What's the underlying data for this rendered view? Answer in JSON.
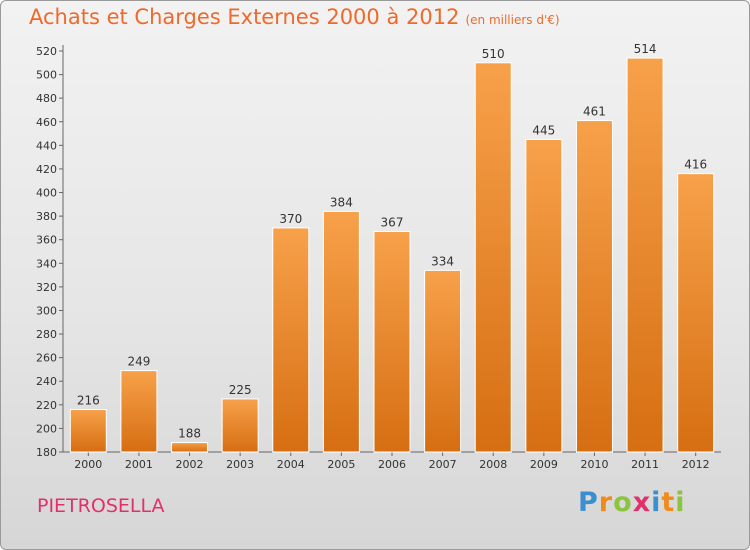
{
  "title": "Achats et Charges Externes 2000 à 2012",
  "unit": "(en milliers d'€)",
  "commune": "PIETROSELLA",
  "logo": {
    "letters": [
      "P",
      "r",
      "o",
      "x",
      "i",
      "t",
      "i"
    ],
    "colors": [
      "#3a8fd0",
      "#f08a1c",
      "#8cc43c",
      "#e2306c",
      "#3a8fd0",
      "#f08a1c",
      "#8cc43c"
    ]
  },
  "colors": {
    "bar": "#f08a2a",
    "bar_light": "#f7a14a",
    "bar_dark": "#d66e12",
    "title": "#ef6a2a",
    "commune": "#e2306c"
  },
  "chart_data": {
    "type": "bar",
    "categories": [
      "2000",
      "2001",
      "2002",
      "2003",
      "2004",
      "2005",
      "2006",
      "2007",
      "2008",
      "2009",
      "2010",
      "2011",
      "2012"
    ],
    "values": [
      216,
      249,
      188,
      225,
      370,
      384,
      367,
      334,
      510,
      445,
      461,
      514,
      416
    ],
    "ylim": [
      180,
      520
    ],
    "yticks": [
      180,
      200,
      220,
      240,
      260,
      280,
      300,
      320,
      340,
      360,
      380,
      400,
      420,
      440,
      460,
      480,
      500,
      520
    ],
    "grid": false,
    "title": "Achats et Charges Externes 2000 à 2012",
    "xlabel": "",
    "ylabel": ""
  }
}
